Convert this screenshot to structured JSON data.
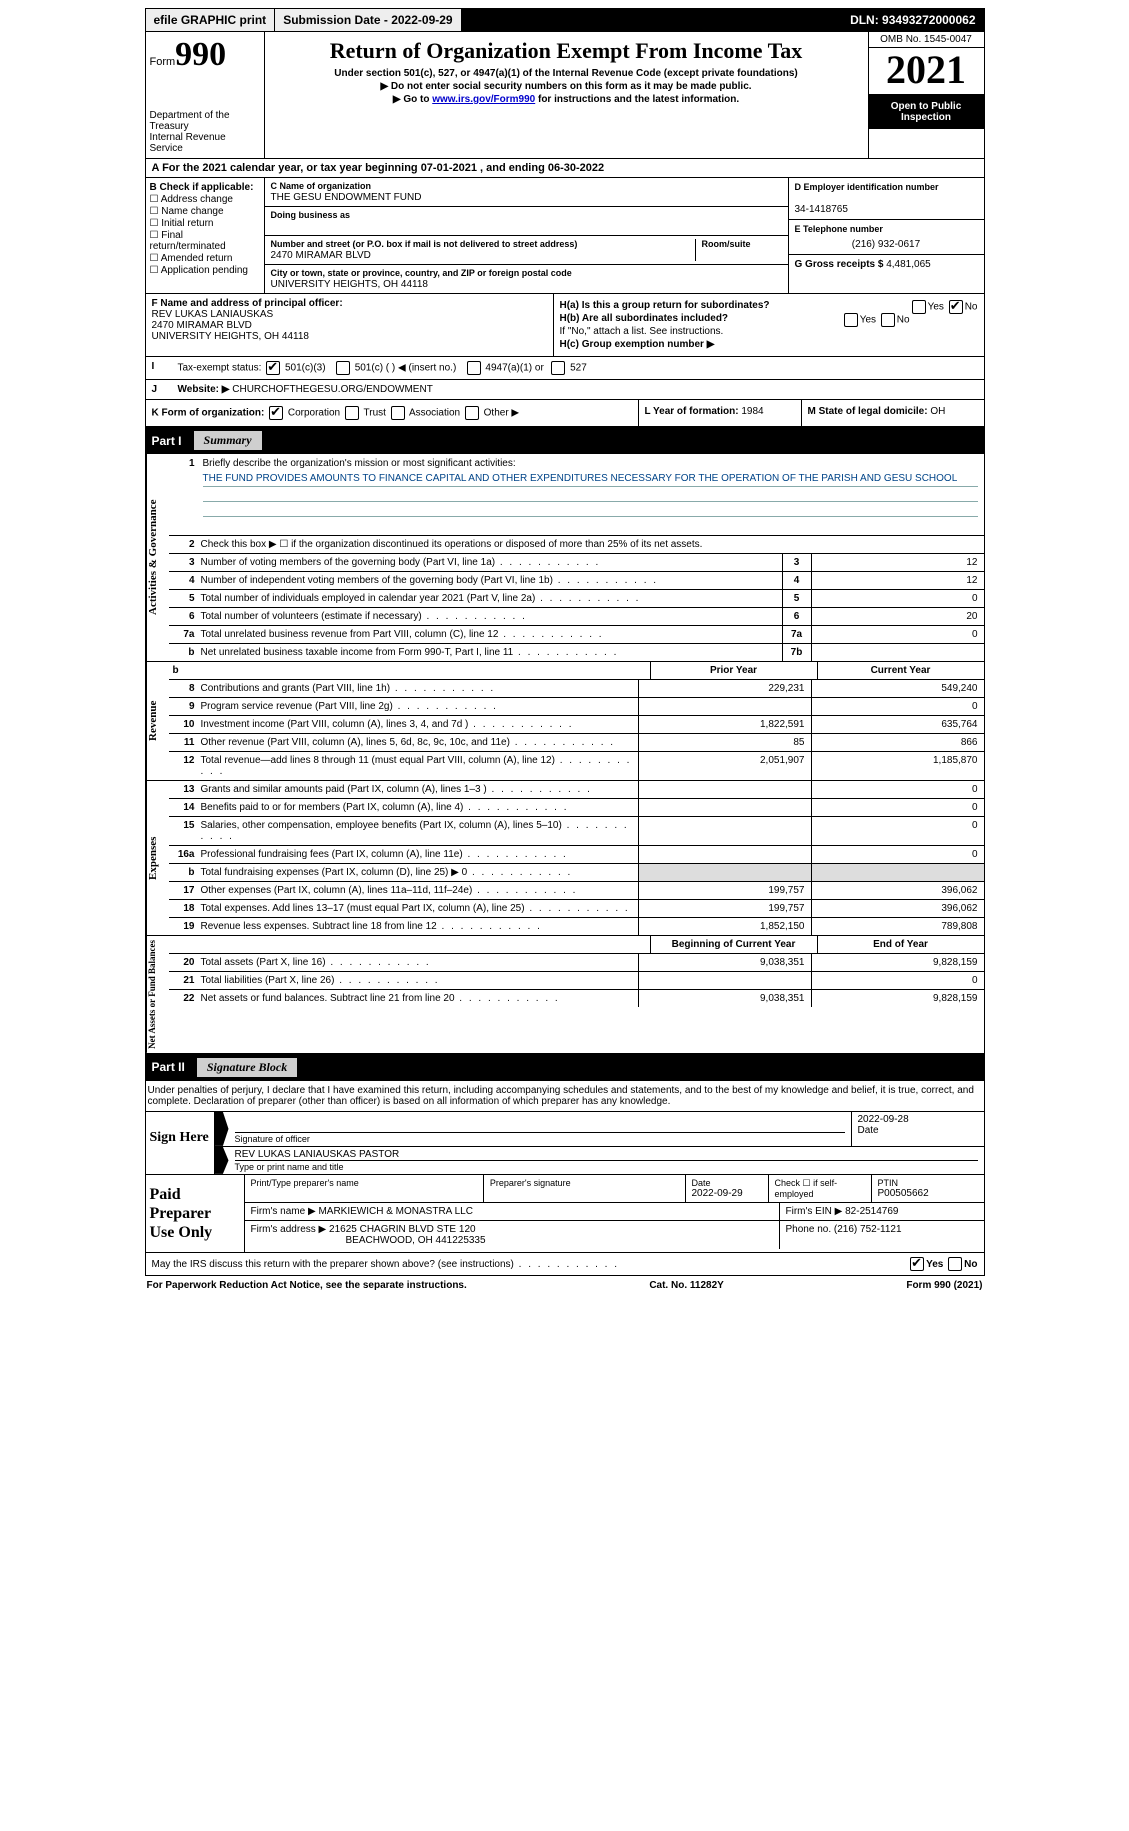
{
  "topbar": {
    "efile": "efile GRAPHIC print",
    "submission": "Submission Date - 2022-09-29",
    "dln": "DLN: 93493272000062"
  },
  "header": {
    "form_word": "Form",
    "form_num": "990",
    "dept": "Department of the Treasury",
    "irs": "Internal Revenue Service",
    "title": "Return of Organization Exempt From Income Tax",
    "sub1": "Under section 501(c), 527, or 4947(a)(1) of the Internal Revenue Code (except private foundations)",
    "sub2": "▶ Do not enter social security numbers on this form as it may be made public.",
    "sub3_pre": "▶ Go to ",
    "sub3_link": "www.irs.gov/Form990",
    "sub3_post": " for instructions and the latest information.",
    "omb": "OMB No. 1545-0047",
    "year": "2021",
    "open": "Open to Public Inspection"
  },
  "lineA": "A For the 2021 calendar year, or tax year beginning 07-01-2021   , and ending 06-30-2022",
  "sectionB": {
    "label": "B Check if applicable:",
    "opts": [
      "Address change",
      "Name change",
      "Initial return",
      "Final return/terminated",
      "Amended return",
      "Application pending"
    ],
    "c_name_lab": "C Name of organization",
    "c_name": "THE GESU ENDOWMENT FUND",
    "dba_lab": "Doing business as",
    "dba": "",
    "street_lab": "Number and street (or P.O. box if mail is not delivered to street address)",
    "room_lab": "Room/suite",
    "street": "2470 MIRAMAR BLVD",
    "city_lab": "City or town, state or province, country, and ZIP or foreign postal code",
    "city": "UNIVERSITY HEIGHTS, OH  44118",
    "d_lab": "D Employer identification number",
    "d_val": "34-1418765",
    "e_lab": "E Telephone number",
    "e_val": "(216) 932-0617",
    "g_lab": "G Gross receipts $",
    "g_val": "4,481,065"
  },
  "sectionF": {
    "f_lab": "F Name and address of principal officer:",
    "f_name": "REV LUKAS LANIAUSKAS",
    "f_addr1": "2470 MIRAMAR BLVD",
    "f_addr2": "UNIVERSITY HEIGHTS, OH  44118",
    "ha": "H(a)  Is this a group return for subordinates?",
    "hb": "H(b)  Are all subordinates included?",
    "hb_note": "If \"No,\" attach a list. See instructions.",
    "hc": "H(c)  Group exemption number ▶",
    "yes": "Yes",
    "no": "No"
  },
  "rowI": {
    "lab": "I",
    "text": "Tax-exempt status:",
    "c3": "501(c)(3)",
    "c": "501(c) (  ) ◀ (insert no.)",
    "a1": "4947(a)(1) or",
    "527": "527"
  },
  "rowJ": {
    "lab": "J",
    "text": "Website: ▶",
    "val": "CHURCHOFTHEGESU.ORG/ENDOWMENT"
  },
  "rowK": {
    "k": "K Form of organization:",
    "corp": "Corporation",
    "trust": "Trust",
    "assoc": "Association",
    "other": "Other ▶",
    "l": "L Year of formation: ",
    "l_val": "1984",
    "m": "M State of legal domicile: ",
    "m_val": "OH"
  },
  "parts": {
    "p1": "Part I",
    "p1t": "Summary",
    "p2": "Part II",
    "p2t": "Signature Block"
  },
  "vtabs": {
    "ag": "Activities & Governance",
    "rev": "Revenue",
    "exp": "Expenses",
    "na": "Net Assets or Fund Balances"
  },
  "mission": {
    "q": "Briefly describe the organization's mission or most significant activities:",
    "text": "THE FUND PROVIDES AMOUNTS TO FINANCE CAPITAL AND OTHER EXPENDITURES NECESSARY FOR THE OPERATION OF THE PARISH AND GESU SCHOOL"
  },
  "lines_ag": [
    {
      "n": "2",
      "d": "Check this box ▶ ☐ if the organization discontinued its operations or disposed of more than 25% of its net assets.",
      "box": "",
      "v": ""
    },
    {
      "n": "3",
      "d": "Number of voting members of the governing body (Part VI, line 1a)",
      "box": "3",
      "v": "12"
    },
    {
      "n": "4",
      "d": "Number of independent voting members of the governing body (Part VI, line 1b)",
      "box": "4",
      "v": "12"
    },
    {
      "n": "5",
      "d": "Total number of individuals employed in calendar year 2021 (Part V, line 2a)",
      "box": "5",
      "v": "0"
    },
    {
      "n": "6",
      "d": "Total number of volunteers (estimate if necessary)",
      "box": "6",
      "v": "20"
    },
    {
      "n": "7a",
      "d": "Total unrelated business revenue from Part VIII, column (C), line 12",
      "box": "7a",
      "v": "0"
    },
    {
      "n": "b",
      "d": "Net unrelated business taxable income from Form 990-T, Part I, line 11",
      "box": "7b",
      "v": ""
    }
  ],
  "rev_head": {
    "prior": "Prior Year",
    "curr": "Current Year"
  },
  "lines_rev": [
    {
      "n": "8",
      "d": "Contributions and grants (Part VIII, line 1h)",
      "p": "229,231",
      "c": "549,240"
    },
    {
      "n": "9",
      "d": "Program service revenue (Part VIII, line 2g)",
      "p": "",
      "c": "0"
    },
    {
      "n": "10",
      "d": "Investment income (Part VIII, column (A), lines 3, 4, and 7d )",
      "p": "1,822,591",
      "c": "635,764"
    },
    {
      "n": "11",
      "d": "Other revenue (Part VIII, column (A), lines 5, 6d, 8c, 9c, 10c, and 11e)",
      "p": "85",
      "c": "866"
    },
    {
      "n": "12",
      "d": "Total revenue—add lines 8 through 11 (must equal Part VIII, column (A), line 12)",
      "p": "2,051,907",
      "c": "1,185,870"
    }
  ],
  "lines_exp": [
    {
      "n": "13",
      "d": "Grants and similar amounts paid (Part IX, column (A), lines 1–3 )",
      "p": "",
      "c": "0"
    },
    {
      "n": "14",
      "d": "Benefits paid to or for members (Part IX, column (A), line 4)",
      "p": "",
      "c": "0"
    },
    {
      "n": "15",
      "d": "Salaries, other compensation, employee benefits (Part IX, column (A), lines 5–10)",
      "p": "",
      "c": "0"
    },
    {
      "n": "16a",
      "d": "Professional fundraising fees (Part IX, column (A), line 11e)",
      "p": "",
      "c": "0"
    },
    {
      "n": "b",
      "d": "Total fundraising expenses (Part IX, column (D), line 25) ▶ 0",
      "p": "shade",
      "c": "shade"
    },
    {
      "n": "17",
      "d": "Other expenses (Part IX, column (A), lines 11a–11d, 11f–24e)",
      "p": "199,757",
      "c": "396,062"
    },
    {
      "n": "18",
      "d": "Total expenses. Add lines 13–17 (must equal Part IX, column (A), line 25)",
      "p": "199,757",
      "c": "396,062"
    },
    {
      "n": "19",
      "d": "Revenue less expenses. Subtract line 18 from line 12",
      "p": "1,852,150",
      "c": "789,808"
    }
  ],
  "na_head": {
    "b": "Beginning of Current Year",
    "e": "End of Year"
  },
  "lines_na": [
    {
      "n": "20",
      "d": "Total assets (Part X, line 16)",
      "p": "9,038,351",
      "c": "9,828,159"
    },
    {
      "n": "21",
      "d": "Total liabilities (Part X, line 26)",
      "p": "",
      "c": "0"
    },
    {
      "n": "22",
      "d": "Net assets or fund balances. Subtract line 21 from line 20",
      "p": "9,038,351",
      "c": "9,828,159"
    }
  ],
  "sig": {
    "decl": "Under penalties of perjury, I declare that I have examined this return, including accompanying schedules and statements, and to the best of my knowledge and belief, it is true, correct, and complete. Declaration of preparer (other than officer) is based on all information of which preparer has any knowledge.",
    "sign_here": "Sign Here",
    "sig_lab": "Signature of officer",
    "date_lab": "Date",
    "sig_date": "2022-09-28",
    "name_val": "REV LUKAS LANIAUSKAS  PASTOR",
    "name_lab": "Type or print name and title"
  },
  "paid": {
    "title": "Paid Preparer Use Only",
    "r1": {
      "a": "Print/Type preparer's name",
      "b": "Preparer's signature",
      "c": "Date",
      "c_val": "2022-09-29",
      "d": "Check ☐ if self-employed",
      "e": "PTIN",
      "e_val": "P00505662"
    },
    "r2": {
      "a": "Firm's name    ▶",
      "a_val": "MARKIEWICH & MONASTRA LLC",
      "b": "Firm's EIN ▶",
      "b_val": "82-2514769"
    },
    "r3": {
      "a": "Firm's address ▶",
      "a_val1": "21625 CHAGRIN BLVD STE 120",
      "a_val2": "BEACHWOOD, OH  441225335",
      "b": "Phone no.",
      "b_val": "(216) 752-1121"
    }
  },
  "may": "May the IRS discuss this return with the preparer shown above? (see instructions)",
  "may_yes": "Yes",
  "may_no": "No",
  "footer": {
    "a": "For Paperwork Reduction Act Notice, see the separate instructions.",
    "b": "Cat. No. 11282Y",
    "c": "Form 990 (2021)"
  }
}
